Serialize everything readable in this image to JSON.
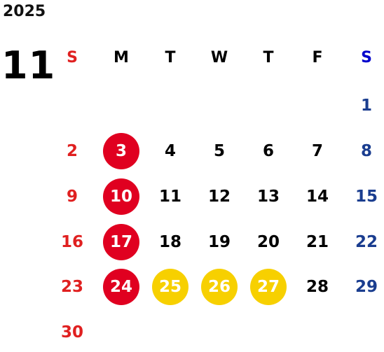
{
  "calendar": {
    "year": "2025",
    "month": "11",
    "weekdays": [
      "S",
      "M",
      "T",
      "W",
      "T",
      "F",
      "S"
    ],
    "weeks": [
      [
        "",
        "",
        "",
        "",
        "",
        "",
        "1"
      ],
      [
        "2",
        "3",
        "4",
        "5",
        "6",
        "7",
        "8"
      ],
      [
        "9",
        "10",
        "11",
        "12",
        "13",
        "14",
        "15"
      ],
      [
        "16",
        "17",
        "18",
        "19",
        "20",
        "21",
        "22"
      ],
      [
        "23",
        "24",
        "25",
        "26",
        "27",
        "28",
        "29"
      ],
      [
        "30",
        "",
        "",
        "",
        "",
        "",
        ""
      ]
    ],
    "highlighted_red": [
      "3",
      "10",
      "17",
      "24"
    ],
    "highlighted_yellow": [
      "25",
      "26",
      "27"
    ]
  },
  "colors": {
    "sunday": "#e02020",
    "saturday": "#1a3d8f",
    "saturday_header": "#0000cc",
    "weekday": "#000000",
    "red_circle": "#e00020",
    "yellow_circle": "#f7d000",
    "circle_text": "#ffffff"
  }
}
